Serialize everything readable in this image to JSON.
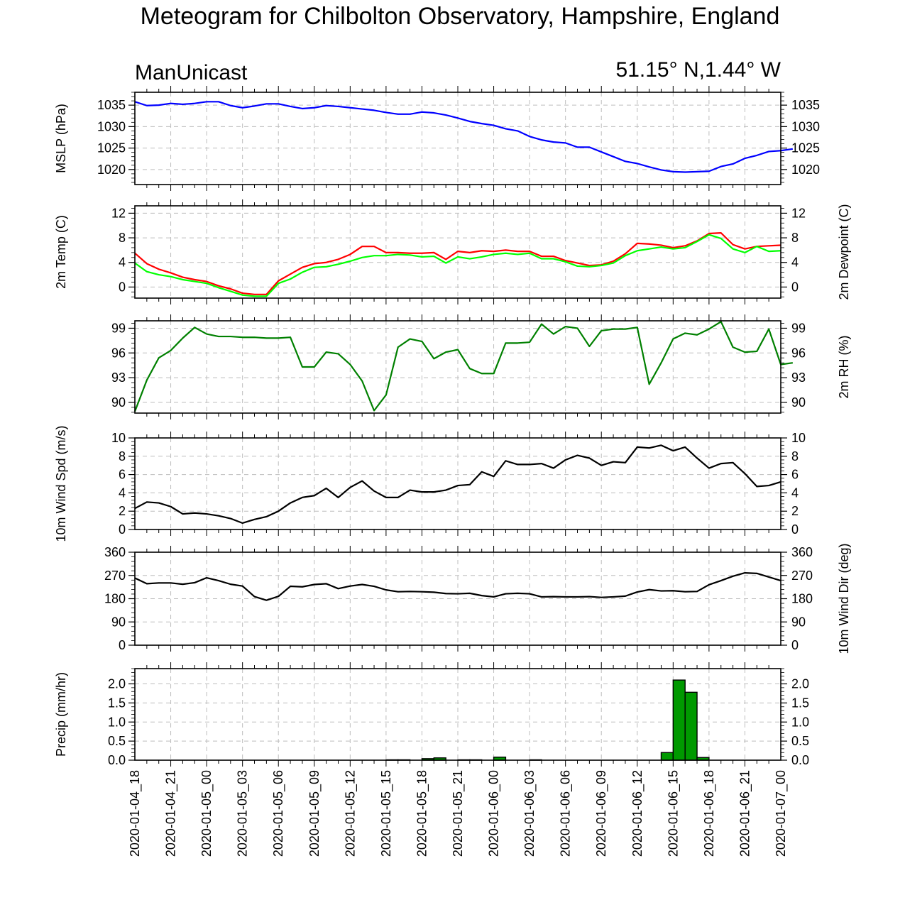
{
  "title": "Meteogram for Chilbolton Observatory, Hampshire, England",
  "subtitle_left": "ManUnicast",
  "subtitle_right": "51.15° N,1.44° W",
  "x_tick_labels": [
    "2020-01-04_18",
    "2020-01-04_21",
    "2020-01-05_00",
    "2020-01-05_03",
    "2020-01-05_06",
    "2020-01-05_09",
    "2020-01-05_12",
    "2020-01-05_15",
    "2020-01-05_18",
    "2020-01-05_21",
    "2020-01-06_00",
    "2020-01-06_03",
    "2020-01-06_06",
    "2020-01-06_09",
    "2020-01-06_12",
    "2020-01-06_15",
    "2020-01-06_18",
    "2020-01-06_21",
    "2020-01-07_00"
  ],
  "colors": {
    "mslp": "#0000ff",
    "temp": "#ff0000",
    "dewpoint": "#00ff00",
    "rh": "#008000",
    "wind": "#000000",
    "precip_bar": "#009900",
    "grid": "#bdbdbd"
  },
  "chart_data": [
    {
      "type": "line",
      "panel": "mslp",
      "ylabel": "MSLP (hPa)",
      "ylim": [
        1016.5,
        1038
      ],
      "yticks": [
        1020,
        1025,
        1030,
        1035
      ],
      "x_start": "2020-01-04_18",
      "x_end": "2020-01-07_00",
      "series": [
        {
          "values": [
            1035.8,
            1034.9,
            1035.0,
            1035.4,
            1035.2,
            1035.4,
            1035.8,
            1035.8,
            1034.9,
            1034.4,
            1034.8,
            1035.3,
            1035.3,
            1034.7,
            1034.2,
            1034.4,
            1034.9,
            1034.7,
            1034.4,
            1034.1,
            1033.8,
            1033.3,
            1032.9,
            1032.9,
            1033.4,
            1033.2,
            1032.7,
            1032.0,
            1031.2,
            1030.7,
            1030.3,
            1029.5,
            1029.0,
            1027.7,
            1026.9,
            1026.4,
            1026.2,
            1025.2,
            1025.2,
            1024.1,
            1023.0,
            1021.9,
            1021.4,
            1020.6,
            1019.9,
            1019.5,
            1019.4,
            1019.5,
            1019.6,
            1020.7,
            1021.3,
            1022.6,
            1023.3,
            1024.2,
            1024.4,
            1024.8
          ]
        }
      ]
    },
    {
      "type": "line",
      "panel": "temp",
      "ylabel": "2m Temp (C)",
      "ylabel_right": "2m Dewpoint (C)",
      "ylim": [
        -1.8,
        13.2
      ],
      "yticks": [
        0,
        4,
        8,
        12
      ],
      "x_start": "2020-01-04_18",
      "x_end": "2020-01-07_00",
      "series": [
        {
          "key": "temp",
          "values": [
            5.5,
            3.8,
            2.9,
            2.3,
            1.6,
            1.2,
            0.9,
            0.2,
            -0.3,
            -1.0,
            -1.2,
            -1.2,
            1.0,
            2.1,
            3.2,
            3.8,
            4.0,
            4.5,
            5.3,
            6.6,
            6.6,
            5.6,
            5.6,
            5.5,
            5.5,
            5.6,
            4.5,
            5.8,
            5.6,
            5.9,
            5.8,
            6.0,
            5.8,
            5.8,
            5.0,
            5.0,
            4.3,
            3.9,
            3.5,
            3.6,
            4.2,
            5.4,
            7.1,
            7.0,
            6.8,
            6.4,
            6.7,
            7.5,
            8.7,
            8.8,
            6.9,
            6.2,
            6.6,
            6.7,
            6.8
          ]
        },
        {
          "key": "dewpoint",
          "values": [
            3.9,
            2.5,
            2.0,
            1.7,
            1.2,
            0.9,
            0.6,
            -0.1,
            -0.7,
            -1.3,
            -1.5,
            -1.5,
            0.6,
            1.3,
            2.4,
            3.2,
            3.3,
            3.7,
            4.2,
            4.8,
            5.1,
            5.1,
            5.3,
            5.2,
            4.9,
            5.0,
            3.9,
            4.9,
            4.6,
            4.9,
            5.3,
            5.5,
            5.3,
            5.5,
            4.6,
            4.6,
            4.1,
            3.4,
            3.3,
            3.5,
            3.9,
            5.1,
            5.9,
            6.2,
            6.5,
            6.2,
            6.4,
            7.4,
            8.5,
            7.9,
            6.2,
            5.6,
            6.6,
            5.8,
            5.9
          ]
        }
      ]
    },
    {
      "type": "line",
      "panel": "rh",
      "ylabel_right": "2m RH (%)",
      "ylim": [
        88.7,
        99.9
      ],
      "yticks": [
        90,
        93,
        96,
        99
      ],
      "x_start": "2020-01-04_18",
      "x_end": "2020-01-07_00",
      "series": [
        {
          "key": "rh",
          "values": [
            88.9,
            92.7,
            95.4,
            96.3,
            97.8,
            99.1,
            98.3,
            98.0,
            98.0,
            97.9,
            97.9,
            97.8,
            97.8,
            97.9,
            94.3,
            94.3,
            96.1,
            95.9,
            94.6,
            92.6,
            89.0,
            90.9,
            96.7,
            97.7,
            97.4,
            95.3,
            96.1,
            96.4,
            94.1,
            93.5,
            93.5,
            97.2,
            97.2,
            97.3,
            99.5,
            98.3,
            99.2,
            99.0,
            96.8,
            98.7,
            98.9,
            98.9,
            99.1,
            92.2,
            94.8,
            97.7,
            98.4,
            98.2,
            98.9,
            99.8,
            96.7,
            96.1,
            96.2,
            98.9,
            94.6,
            94.8
          ]
        }
      ]
    },
    {
      "type": "line",
      "panel": "wind_speed",
      "ylabel": "10m Wind Spd (m/s)",
      "ylim": [
        0,
        10
      ],
      "yticks": [
        0,
        2,
        4,
        6,
        8,
        10
      ],
      "x_start": "2020-01-04_18",
      "x_end": "2020-01-07_00",
      "series": [
        {
          "key": "wind",
          "values": [
            2.3,
            3.0,
            2.9,
            2.5,
            1.7,
            1.8,
            1.7,
            1.5,
            1.2,
            0.7,
            1.1,
            1.4,
            2.0,
            2.9,
            3.5,
            3.7,
            4.5,
            3.5,
            4.6,
            5.3,
            4.2,
            3.5,
            3.5,
            4.3,
            4.1,
            4.1,
            4.3,
            4.8,
            4.9,
            6.3,
            5.8,
            7.5,
            7.1,
            7.1,
            7.2,
            6.7,
            7.6,
            8.1,
            7.8,
            7.0,
            7.4,
            7.3,
            9.0,
            8.9,
            9.2,
            8.6,
            9.0,
            7.8,
            6.7,
            7.2,
            7.3,
            6.1,
            4.7,
            4.8,
            5.2
          ]
        }
      ]
    },
    {
      "type": "line",
      "panel": "wind_direction",
      "ylabel_right": "10m Wind Dir (deg)",
      "ylim": [
        0,
        360
      ],
      "yticks": [
        0,
        90,
        180,
        270,
        360
      ],
      "x_start": "2020-01-04_18",
      "x_end": "2020-01-07_00",
      "series": [
        {
          "key": "wind",
          "values": [
            260,
            238,
            241,
            241,
            236,
            242,
            261,
            250,
            236,
            229,
            188,
            174,
            189,
            228,
            226,
            235,
            238,
            219,
            229,
            235,
            228,
            214,
            207,
            208,
            207,
            205,
            200,
            199,
            201,
            192,
            187,
            199,
            201,
            199,
            187,
            188,
            187,
            187,
            188,
            185,
            187,
            190,
            206,
            215,
            210,
            211,
            207,
            208,
            234,
            250,
            267,
            280,
            278,
            264,
            250
          ]
        }
      ]
    },
    {
      "type": "bar",
      "panel": "precip",
      "ylabel": "Precip (mm/hr)",
      "ylim": [
        0,
        2.4
      ],
      "yticks": [
        0,
        0.5,
        1.0,
        1.5,
        2.0
      ],
      "ytick_labels": [
        "0.0",
        "0.5",
        "1.0",
        "1.5",
        "2.0"
      ],
      "x_start": "2020-01-04_18",
      "x_end": "2020-01-07_00",
      "bars": [
        {
          "hour": 21.5,
          "value": 0.01
        },
        {
          "hour": 22.5,
          "value": 0.01
        },
        {
          "hour": 24.5,
          "value": 0.04
        },
        {
          "hour": 25.5,
          "value": 0.06
        },
        {
          "hour": 27.5,
          "value": 0.01
        },
        {
          "hour": 28.5,
          "value": 0.01
        },
        {
          "hour": 30.5,
          "value": 0.08
        },
        {
          "hour": 33.5,
          "value": 0.01
        },
        {
          "hour": 44.5,
          "value": 0.2
        },
        {
          "hour": 45.5,
          "value": 2.1
        },
        {
          "hour": 46.5,
          "value": 1.78
        },
        {
          "hour": 47.5,
          "value": 0.07
        }
      ]
    }
  ]
}
